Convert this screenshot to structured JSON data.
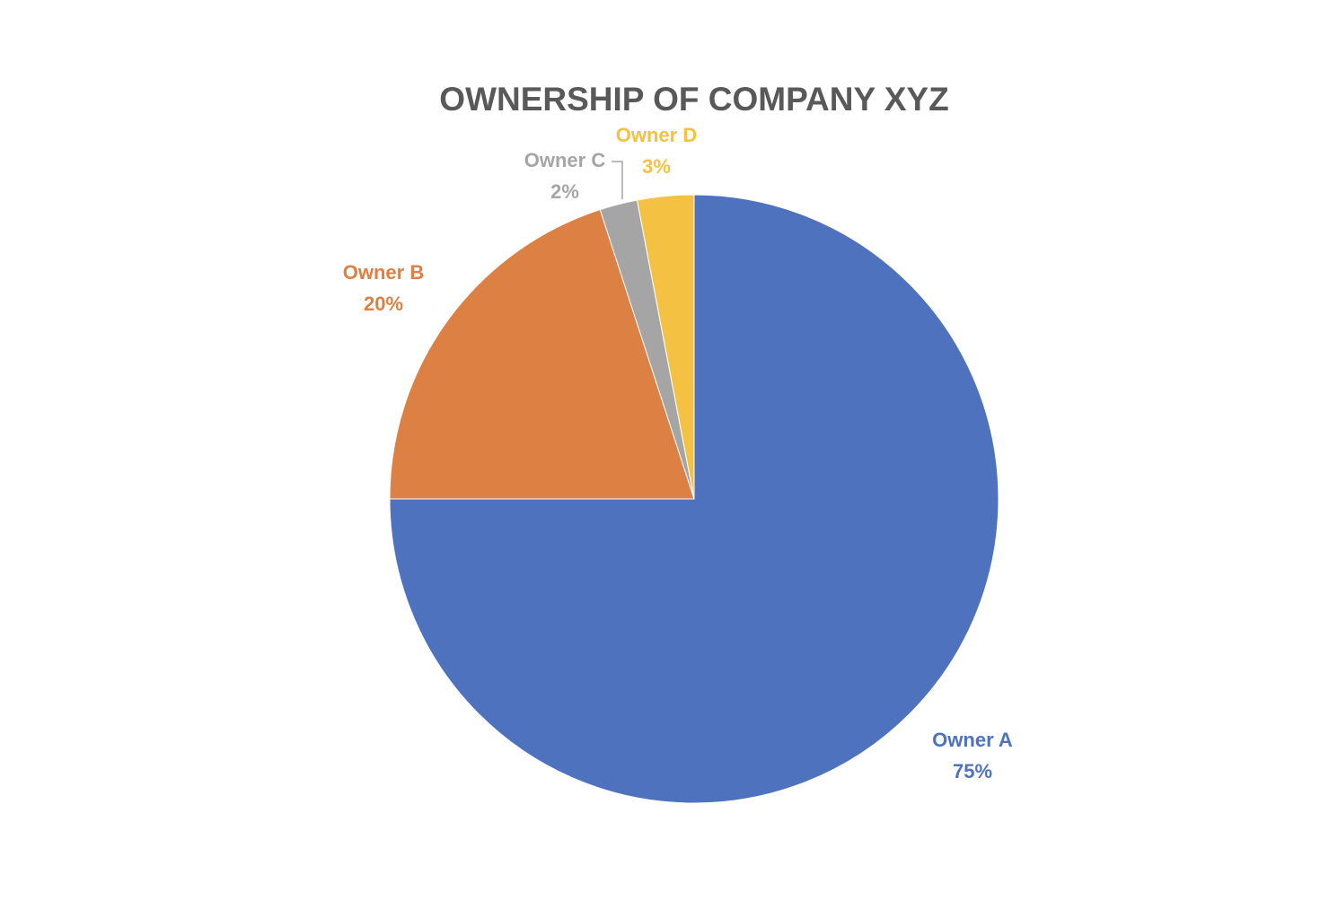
{
  "chart_data": {
    "type": "pie",
    "title": "OWNERSHIP OF COMPANY XYZ",
    "categories": [
      "Owner A",
      "Owner B",
      "Owner C",
      "Owner D"
    ],
    "values": [
      75,
      20,
      2,
      3
    ],
    "value_labels": [
      "75%",
      "20%",
      "2%",
      "3%"
    ],
    "colors": [
      "#4e72bd",
      "#dd8044",
      "#a5a5a5",
      "#f4c143"
    ]
  }
}
